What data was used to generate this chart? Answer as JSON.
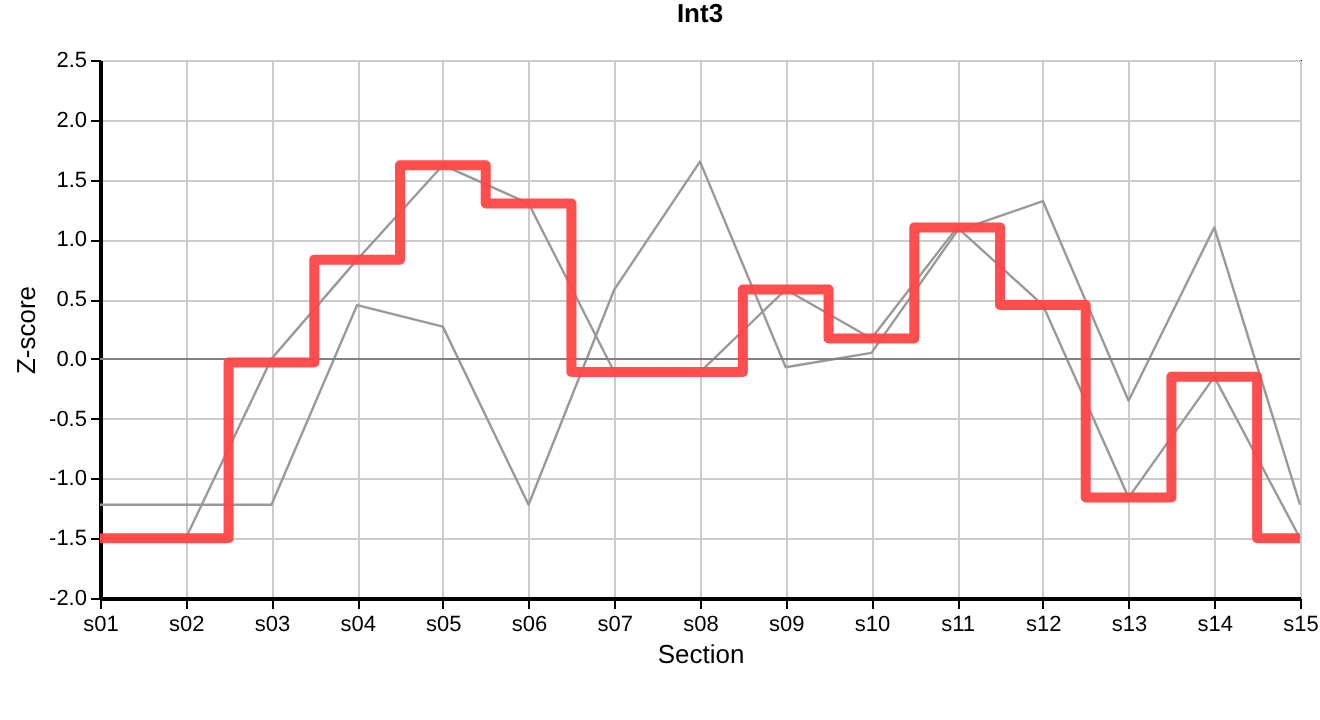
{
  "chart_data": {
    "type": "line",
    "title": "Int3",
    "xlabel": "Section",
    "ylabel": "Z-score",
    "categories": [
      "s01",
      "s02",
      "s03",
      "s04",
      "s05",
      "s06",
      "s07",
      "s08",
      "s09",
      "s10",
      "s11",
      "s12",
      "s13",
      "s14",
      "s15"
    ],
    "series": [
      {
        "color": "#999999",
        "values": [
          -1.22,
          -1.22,
          -1.22,
          0.45,
          0.27,
          -1.22,
          0.58,
          1.65,
          -0.07,
          0.05,
          1.07,
          1.32,
          -0.35,
          1.1,
          -1.22
        ]
      },
      {
        "color": "#999999",
        "values": [
          -1.5,
          -1.5,
          0.0,
          0.83,
          1.62,
          1.3,
          -0.11,
          -0.11,
          0.58,
          0.17,
          1.1,
          0.45,
          -1.16,
          -0.15,
          -1.5
        ]
      },
      {
        "type": "step",
        "color": "#ff4444",
        "values": [
          -1.5,
          -1.5,
          -0.03,
          0.83,
          1.62,
          1.3,
          -0.11,
          -0.11,
          0.58,
          0.17,
          1.1,
          0.45,
          -1.16,
          -0.15,
          -1.5
        ]
      }
    ],
    "ylim": [
      -2.0,
      2.5
    ],
    "yticks": [
      {
        "value": -2,
        "label": "-2.0"
      },
      -1.5,
      {
        "value": -1,
        "label": "-1.0"
      },
      -0.5,
      {
        "value": 0,
        "label": "0.0"
      },
      0.5,
      {
        "value": 1,
        "label": "1.0"
      },
      1.5,
      {
        "value": 2,
        "label": "2.0"
      },
      2.5
    ],
    "ref_lines": [
      {
        "axis": "y",
        "value": 0,
        "color": "#808080"
      }
    ],
    "grid": true
  }
}
